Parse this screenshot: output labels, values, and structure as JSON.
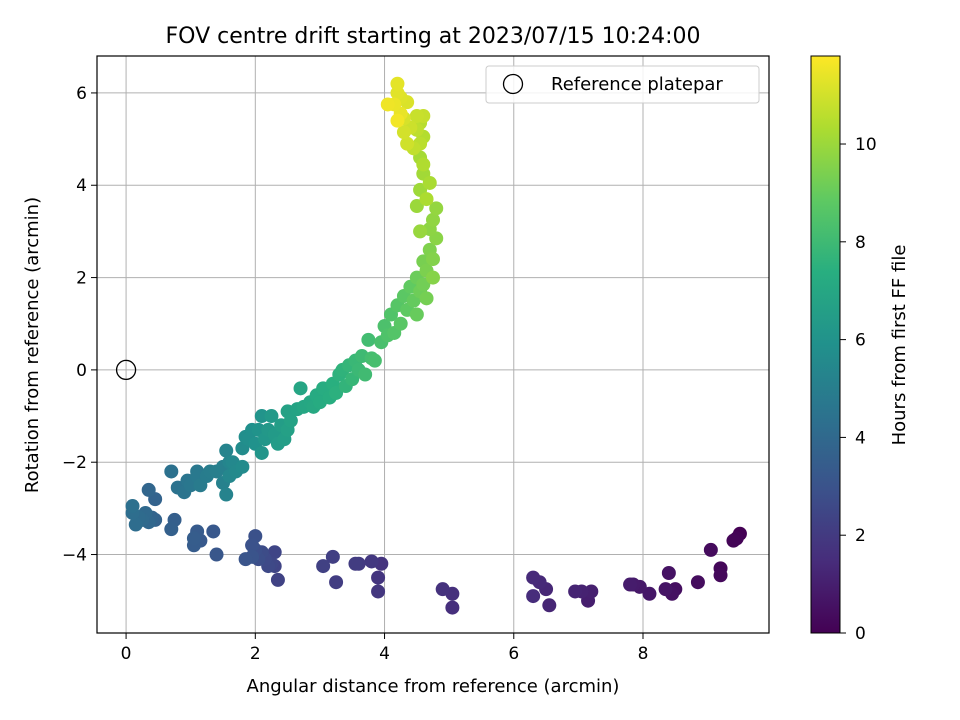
{
  "chart_data": {
    "type": "scatter",
    "title": "FOV centre drift starting at 2023/07/15 10:24:00",
    "xlabel": "Angular distance from reference (arcmin)",
    "ylabel": "Rotation from reference (arcmin)",
    "xlim": [
      -0.45,
      9.95
    ],
    "ylim": [
      -5.7,
      6.8
    ],
    "xticks": [
      0,
      2,
      4,
      6,
      8
    ],
    "yticks": [
      -4,
      -2,
      0,
      2,
      4,
      6
    ],
    "grid": true,
    "legend": {
      "placement": "top-right",
      "entries": [
        "Reference platepar"
      ]
    },
    "reference_point": {
      "x": 0,
      "y": 0,
      "label": "Reference platepar"
    },
    "colorbar": {
      "label": "Hours from first FF file",
      "colormap": "viridis",
      "range": [
        0,
        11.8
      ],
      "ticks": [
        0,
        2,
        4,
        6,
        8,
        10
      ]
    },
    "series": [
      {
        "point_schema": [
          "x",
          "y",
          "hours"
        ],
        "points": [
          [
            9.5,
            -3.55
          ],
          [
            9.45,
            -3.65
          ],
          [
            9.4,
            -3.7
          ],
          [
            9.2,
            -4.3
          ],
          [
            9.2,
            -4.45
          ],
          [
            9.05,
            -3.9
          ],
          [
            8.85,
            -4.6
          ],
          [
            8.5,
            -4.75
          ],
          [
            8.45,
            -4.85
          ],
          [
            8.4,
            -4.4
          ],
          [
            8.35,
            -4.75
          ],
          [
            8.1,
            -4.85
          ],
          [
            7.95,
            -4.7
          ],
          [
            7.85,
            -4.65
          ],
          [
            7.8,
            -4.65
          ],
          [
            7.15,
            -5.0
          ],
          [
            7.2,
            -4.8
          ],
          [
            7.05,
            -4.8
          ],
          [
            6.95,
            -4.8
          ],
          [
            6.55,
            -5.1
          ],
          [
            6.5,
            -4.75
          ],
          [
            6.4,
            -4.6
          ],
          [
            6.3,
            -4.5
          ],
          [
            6.3,
            -4.9
          ],
          [
            5.05,
            -5.15
          ],
          [
            5.05,
            -4.85
          ],
          [
            4.9,
            -4.75
          ],
          [
            3.95,
            -4.2
          ],
          [
            3.9,
            -4.5
          ],
          [
            3.9,
            -4.8
          ],
          [
            3.8,
            -4.15
          ],
          [
            3.6,
            -4.2
          ],
          [
            3.55,
            -4.2
          ],
          [
            3.25,
            -4.6
          ],
          [
            3.2,
            -4.05
          ],
          [
            3.05,
            -4.25
          ],
          [
            2.35,
            -4.55
          ],
          [
            2.3,
            -4.25
          ],
          [
            2.3,
            -3.95
          ],
          [
            2.25,
            -4.2
          ],
          [
            2.2,
            -4.25
          ],
          [
            2.15,
            -4.1
          ],
          [
            2.1,
            -3.95
          ],
          [
            2.05,
            -4.1
          ],
          [
            2.0,
            -3.9
          ],
          [
            2.0,
            -3.6
          ],
          [
            1.95,
            -3.8
          ],
          [
            1.95,
            -4.05
          ],
          [
            1.85,
            -4.1
          ],
          [
            1.4,
            -4.0
          ],
          [
            1.35,
            -3.5
          ],
          [
            1.15,
            -3.7
          ],
          [
            1.1,
            -3.5
          ],
          [
            1.05,
            -3.8
          ],
          [
            1.05,
            -3.65
          ],
          [
            0.75,
            -3.25
          ],
          [
            0.7,
            -3.45
          ],
          [
            0.45,
            -3.25
          ],
          [
            0.45,
            -2.8
          ],
          [
            0.4,
            -3.2
          ],
          [
            0.35,
            -2.6
          ],
          [
            0.35,
            -3.3
          ],
          [
            0.3,
            -3.1
          ],
          [
            0.25,
            -3.25
          ],
          [
            0.2,
            -3.2
          ],
          [
            0.15,
            -3.35
          ],
          [
            0.1,
            -3.1
          ],
          [
            0.1,
            -2.95
          ],
          [
            0.7,
            -2.2
          ],
          [
            0.8,
            -2.55
          ],
          [
            0.9,
            -2.65
          ],
          [
            0.95,
            -2.4
          ],
          [
            1.0,
            -2.5
          ],
          [
            1.1,
            -2.2
          ],
          [
            1.1,
            -2.3
          ],
          [
            1.15,
            -2.5
          ],
          [
            1.25,
            -2.3
          ],
          [
            1.3,
            -2.2
          ],
          [
            1.4,
            -2.2
          ],
          [
            1.5,
            -2.1
          ],
          [
            1.5,
            -2.45
          ],
          [
            1.55,
            -2.7
          ],
          [
            1.55,
            -1.75
          ],
          [
            1.6,
            -2.0
          ],
          [
            1.6,
            -2.3
          ],
          [
            1.65,
            -2.0
          ],
          [
            1.7,
            -2.2
          ],
          [
            1.8,
            -2.1
          ],
          [
            1.8,
            -1.7
          ],
          [
            1.85,
            -1.45
          ],
          [
            1.9,
            -1.5
          ],
          [
            1.95,
            -1.3
          ],
          [
            2.0,
            -1.6
          ],
          [
            2.05,
            -1.3
          ],
          [
            2.1,
            -1.0
          ],
          [
            2.1,
            -1.8
          ],
          [
            2.15,
            -1.5
          ],
          [
            2.2,
            -1.3
          ],
          [
            2.25,
            -1.0
          ],
          [
            2.3,
            -1.4
          ],
          [
            2.35,
            -1.6
          ],
          [
            2.4,
            -1.2
          ],
          [
            2.45,
            -1.5
          ],
          [
            2.5,
            -1.3
          ],
          [
            2.5,
            -0.9
          ],
          [
            2.55,
            -1.1
          ],
          [
            2.65,
            -0.85
          ],
          [
            2.7,
            -0.4
          ],
          [
            2.75,
            -0.8
          ],
          [
            2.85,
            -0.7
          ],
          [
            2.9,
            -0.8
          ],
          [
            2.95,
            -0.55
          ],
          [
            3.0,
            -0.7
          ],
          [
            3.05,
            -0.4
          ],
          [
            3.15,
            -0.6
          ],
          [
            3.2,
            -0.3
          ],
          [
            3.25,
            -0.5
          ],
          [
            3.3,
            -0.1
          ],
          [
            3.35,
            0.0
          ],
          [
            3.4,
            -0.35
          ],
          [
            3.45,
            0.1
          ],
          [
            3.5,
            -0.2
          ],
          [
            3.55,
            0.2
          ],
          [
            3.6,
            0.0
          ],
          [
            3.65,
            0.3
          ],
          [
            3.7,
            -0.1
          ],
          [
            3.75,
            0.65
          ],
          [
            3.8,
            0.25
          ],
          [
            3.85,
            0.2
          ],
          [
            3.95,
            0.6
          ],
          [
            4.0,
            0.95
          ],
          [
            4.05,
            0.75
          ],
          [
            4.1,
            1.2
          ],
          [
            4.15,
            0.8
          ],
          [
            4.2,
            1.4
          ],
          [
            4.25,
            1.0
          ],
          [
            4.3,
            1.6
          ],
          [
            4.35,
            1.3
          ],
          [
            4.4,
            1.8
          ],
          [
            4.45,
            1.5
          ],
          [
            4.5,
            1.2
          ],
          [
            4.5,
            2.0
          ],
          [
            4.55,
            1.7
          ],
          [
            4.6,
            1.85
          ],
          [
            4.65,
            1.55
          ],
          [
            4.6,
            2.35
          ],
          [
            4.65,
            2.15
          ],
          [
            4.7,
            2.6
          ],
          [
            4.75,
            2.4
          ],
          [
            4.75,
            2.0
          ],
          [
            4.8,
            2.85
          ],
          [
            4.7,
            3.05
          ],
          [
            4.75,
            3.25
          ],
          [
            4.8,
            3.5
          ],
          [
            4.55,
            3.0
          ],
          [
            4.5,
            3.55
          ],
          [
            4.55,
            3.9
          ],
          [
            4.6,
            4.25
          ],
          [
            4.55,
            4.6
          ],
          [
            4.7,
            4.05
          ],
          [
            4.65,
            3.7
          ],
          [
            4.6,
            4.45
          ],
          [
            4.6,
            5.05
          ],
          [
            4.55,
            5.35
          ],
          [
            4.55,
            4.9
          ],
          [
            4.5,
            5.2
          ],
          [
            4.45,
            4.8
          ],
          [
            4.6,
            5.5
          ],
          [
            4.5,
            5.5
          ],
          [
            4.4,
            5.25
          ],
          [
            4.35,
            4.9
          ],
          [
            4.3,
            5.15
          ],
          [
            4.3,
            5.45
          ],
          [
            4.35,
            5.8
          ],
          [
            4.25,
            5.9
          ],
          [
            4.2,
            6.0
          ],
          [
            4.2,
            6.2
          ],
          [
            4.25,
            5.55
          ],
          [
            4.15,
            5.75
          ],
          [
            4.05,
            5.75
          ],
          [
            4.2,
            5.4
          ]
        ]
      }
    ]
  }
}
